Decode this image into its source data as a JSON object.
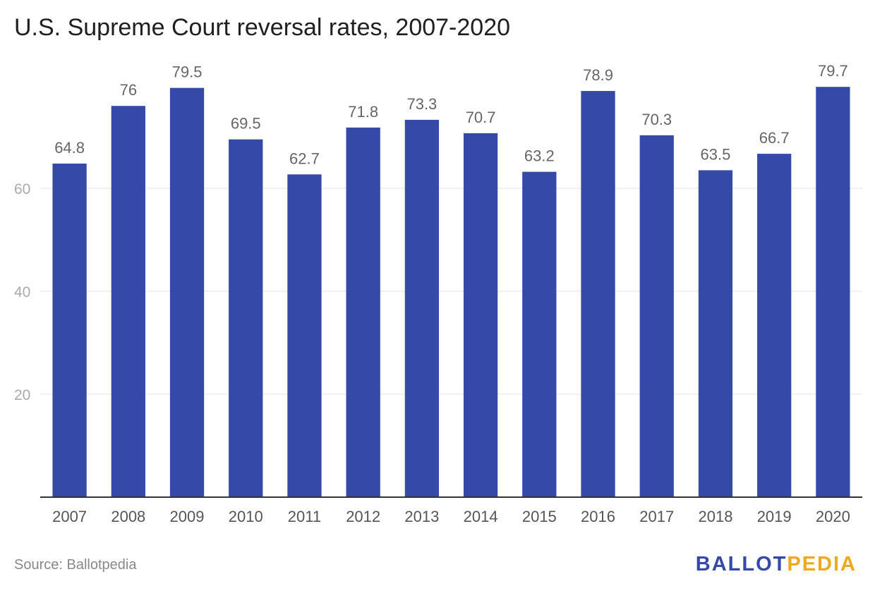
{
  "chart_data": {
    "type": "bar",
    "title": "U.S. Supreme Court reversal rates, 2007-2020",
    "categories": [
      "2007",
      "2008",
      "2009",
      "2010",
      "2011",
      "2012",
      "2013",
      "2014",
      "2015",
      "2016",
      "2017",
      "2018",
      "2019",
      "2020"
    ],
    "values": [
      64.8,
      76,
      79.5,
      69.5,
      62.7,
      71.8,
      73.3,
      70.7,
      63.2,
      78.9,
      70.3,
      63.5,
      66.7,
      79.7
    ],
    "yticks": [
      20,
      40,
      60
    ],
    "ylim": [
      0,
      80
    ],
    "grid": true,
    "bar_color": "#3549a9",
    "xlabel": "",
    "ylabel": ""
  },
  "footer": {
    "source": "Source: Ballotpedia",
    "logo_part1": "BALLOT",
    "logo_part2": "PEDIA",
    "logo_color1": "#3549a9",
    "logo_color2": "#f0a81e"
  }
}
